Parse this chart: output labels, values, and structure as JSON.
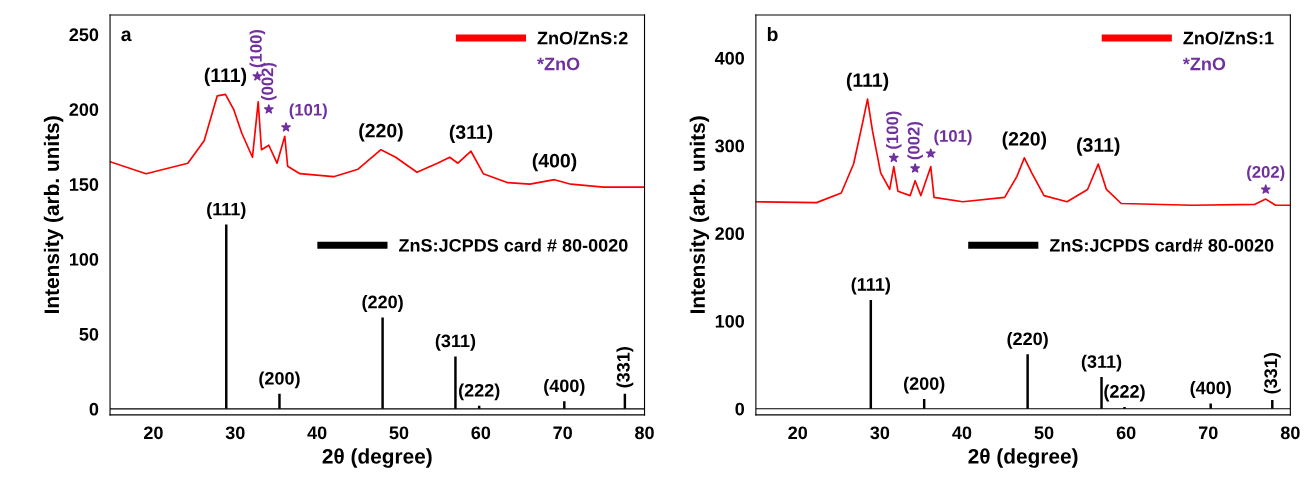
{
  "chart_data": [
    {
      "type": "line",
      "xlabel": "2θ (degree)",
      "ylabel": "Intensity (arb. units)",
      "xlim": [
        14.7,
        80
      ],
      "ylim": [
        -4,
        263
      ],
      "xticks": [
        20,
        30,
        40,
        50,
        60,
        70,
        80
      ],
      "yticks": [
        0,
        50,
        100,
        150,
        200,
        250
      ],
      "legend": "top right",
      "grid": false,
      "series": [
        {
          "name": "ZnO/ZnS:2",
          "color": "#ff0000",
          "x": [
            14.7,
            19.1,
            24.2,
            26.2,
            27.8,
            28.8,
            29.8,
            30.8,
            32.1,
            32.8,
            33.2,
            34.1,
            35.1,
            36.05,
            36.4,
            37.9,
            42.0,
            45.0,
            47.8,
            49.6,
            52.2,
            54.7,
            56.2,
            57.2,
            58.8,
            60.3,
            63.3,
            66.0,
            69.0,
            71.0,
            75.0,
            80.0
          ],
          "values": [
            165,
            157,
            164,
            179,
            209,
            210,
            200,
            184,
            168,
            205,
            173,
            176,
            164,
            182,
            162,
            157,
            155,
            160,
            173,
            168,
            158,
            164,
            168,
            164,
            172,
            157,
            151,
            150,
            153,
            150,
            148,
            148
          ]
        },
        {
          "type": "bar",
          "name": "ZnS:JCPDS card # 80-0020",
          "color": "#000000",
          "x": [
            28.9,
            35.4,
            48.0,
            56.9,
            59.8,
            70.2,
            77.6
          ],
          "values": [
            123,
            10,
            61,
            35,
            2,
            5,
            10
          ]
        },
        {
          "type": "scatter",
          "name": "*ZnO",
          "color": "#7030a0",
          "marker": "star",
          "x": [
            32.7,
            34.1,
            36.2
          ],
          "values": [
            222,
            200,
            188
          ]
        }
      ],
      "ref_lines": [
        {
          "axis": "y",
          "value": 0,
          "color": "#000000"
        }
      ],
      "annotations": [
        "a",
        {
          "text": "(111)",
          "x": 28.8,
          "y": 210
        },
        {
          "text": "(220)",
          "x": 47.8,
          "y": 173
        },
        {
          "text": "(311)",
          "x": 58.8,
          "y": 172
        },
        {
          "text": "(400)",
          "x": 69.0,
          "y": 153
        },
        {
          "text": "(111)",
          "x": 28.9,
          "y": 123
        },
        {
          "text": "(200)",
          "x": 35.4,
          "y": 10
        },
        {
          "text": "(220)",
          "x": 48.0,
          "y": 61
        },
        {
          "text": "(311)",
          "x": 56.9,
          "y": 35
        },
        {
          "text": "(222)",
          "x": 59.8,
          "y": 2
        },
        {
          "text": "(400)",
          "x": 70.2,
          "y": 5
        },
        {
          "text": "(331)",
          "x": 77.6,
          "y": 10
        },
        {
          "text": "(100)",
          "x": 32.7,
          "y": 222
        },
        {
          "text": "(002)",
          "x": 34.1,
          "y": 200
        },
        {
          "text": "(101)",
          "x": 36.2,
          "y": 188
        }
      ]
    },
    {
      "type": "line",
      "xlabel": "2θ (degree)",
      "ylabel": "Intensity (arb. units)",
      "xlim": [
        14.9,
        80
      ],
      "ylim": [
        -7,
        449
      ],
      "xticks": [
        20,
        30,
        40,
        50,
        60,
        70,
        80
      ],
      "yticks": [
        0,
        100,
        200,
        300,
        400
      ],
      "legend": "top right",
      "grid": false,
      "series": [
        {
          "name": "ZnO/ZnS:1",
          "color": "#ff0000",
          "x": [
            14.9,
            22.3,
            25.3,
            26.8,
            27.9,
            28.5,
            29.1,
            30.1,
            31.2,
            31.7,
            32.2,
            33.7,
            34.3,
            35.0,
            36.2,
            36.6,
            40.1,
            45.2,
            46.7,
            47.6,
            48.5,
            50.0,
            52.8,
            55.3,
            56.6,
            57.6,
            59.4,
            68.1,
            75.7,
            77.0,
            78.2,
            80.0
          ],
          "values": [
            236,
            235,
            246,
            279,
            326,
            353,
            317,
            269,
            250,
            276,
            248,
            243,
            260,
            243,
            276,
            241,
            236,
            241,
            265,
            286,
            269,
            243,
            236,
            250,
            279,
            250,
            234,
            232,
            233,
            239,
            232,
            232
          ]
        },
        {
          "type": "bar",
          "name": "ZnS:JCPDS card# 80-0020",
          "color": "#000000",
          "x": [
            28.9,
            35.4,
            48.0,
            57.0,
            59.8,
            70.3,
            77.8
          ],
          "values": [
            124,
            11,
            62,
            36,
            2,
            6,
            10
          ]
        },
        {
          "type": "scatter",
          "name": "*ZnO",
          "color": "#7030a0",
          "marker": "star",
          "x": [
            31.7,
            34.3,
            36.2,
            77.0
          ],
          "values": [
            286,
            274,
            291,
            250
          ]
        }
      ],
      "ref_lines": [
        {
          "axis": "y",
          "value": 0,
          "color": "#000000"
        }
      ],
      "annotations": [
        "b",
        {
          "text": "(111)",
          "x": 28.5,
          "y": 353
        },
        {
          "text": "(220)",
          "x": 47.6,
          "y": 286
        },
        {
          "text": "(311)",
          "x": 56.6,
          "y": 279
        },
        {
          "text": "(111)",
          "x": 28.9,
          "y": 124
        },
        {
          "text": "(200)",
          "x": 35.4,
          "y": 11
        },
        {
          "text": "(220)",
          "x": 48.0,
          "y": 62
        },
        {
          "text": "(311)",
          "x": 57.0,
          "y": 36
        },
        {
          "text": "(222)",
          "x": 59.8,
          "y": 2
        },
        {
          "text": "(400)",
          "x": 70.3,
          "y": 6
        },
        {
          "text": "(331)",
          "x": 77.8,
          "y": 10
        },
        {
          "text": "(100)",
          "x": 31.7,
          "y": 286
        },
        {
          "text": "(002)",
          "x": 34.3,
          "y": 274
        },
        {
          "text": "(101)",
          "x": 36.2,
          "y": 291
        },
        {
          "text": "(202)",
          "x": 77.0,
          "y": 250
        }
      ]
    }
  ]
}
